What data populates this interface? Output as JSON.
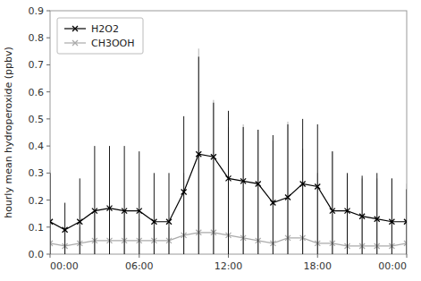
{
  "chart_data": {
    "type": "line",
    "y_label": "hourly mean hydroperoxide (ppbv)",
    "x": [
      0,
      1,
      2,
      3,
      4,
      5,
      6,
      7,
      8,
      9,
      10,
      11,
      12,
      13,
      14,
      15,
      16,
      17,
      18,
      19,
      20,
      21,
      22,
      23,
      24
    ],
    "xlim": [
      0,
      24
    ],
    "xticks": [
      {
        "value": 0,
        "label": "00:00"
      },
      {
        "value": 6,
        "label": "06:00"
      },
      {
        "value": 12,
        "label": "12:00"
      },
      {
        "value": 18,
        "label": "18:00"
      },
      {
        "value": 24,
        "label": "00:00"
      }
    ],
    "ylim": [
      0.0,
      0.9
    ],
    "yticks": [
      {
        "value": 0.0,
        "label": "0.0"
      },
      0.1,
      0.2,
      0.3,
      0.4,
      0.5,
      0.6,
      0.7,
      0.8,
      0.9
    ],
    "grid": false,
    "legend": "upper-left",
    "series": [
      {
        "name": "H2O2",
        "color": "#000000",
        "marker": "x",
        "line_style": "solid",
        "values": [
          0.12,
          0.09,
          0.12,
          0.16,
          0.17,
          0.16,
          0.16,
          0.12,
          0.12,
          0.23,
          0.37,
          0.36,
          0.28,
          0.27,
          0.26,
          0.19,
          0.21,
          0.26,
          0.25,
          0.16,
          0.16,
          0.14,
          0.13,
          0.12,
          0.12
        ],
        "upper": [
          0.3,
          0.19,
          0.28,
          0.4,
          0.4,
          0.4,
          0.38,
          0.3,
          0.3,
          0.51,
          0.73,
          0.56,
          0.53,
          0.47,
          0.46,
          0.44,
          0.48,
          0.5,
          0.48,
          0.38,
          0.3,
          0.29,
          0.3,
          0.28,
          0.24
        ],
        "lower": [
          0.0,
          0.0,
          0.0,
          0.0,
          0.0,
          0.0,
          0.0,
          0.0,
          0.0,
          0.0,
          0.0,
          0.0,
          0.0,
          0.0,
          0.0,
          0.0,
          0.0,
          0.0,
          0.0,
          0.0,
          0.0,
          0.0,
          0.0,
          0.0,
          0.0
        ]
      },
      {
        "name": "CH3OOH",
        "color": "#aaaaaa",
        "marker": "x",
        "line_style": "solid",
        "values": [
          0.04,
          0.03,
          0.04,
          0.05,
          0.05,
          0.05,
          0.05,
          0.05,
          0.05,
          0.07,
          0.08,
          0.08,
          0.07,
          0.06,
          0.05,
          0.04,
          0.06,
          0.06,
          0.04,
          0.04,
          0.03,
          0.03,
          0.03,
          0.03,
          0.04
        ],
        "upper": [
          0.31,
          0.1,
          0.1,
          0.16,
          0.16,
          0.16,
          0.13,
          0.1,
          0.1,
          0.3,
          0.76,
          0.57,
          0.47,
          0.48,
          0.46,
          0.42,
          0.49,
          0.39,
          0.3,
          0.38,
          0.29,
          0.28,
          0.28,
          0.28,
          0.26
        ],
        "lower": [
          0.0,
          0.0,
          0.0,
          0.0,
          0.0,
          0.0,
          0.0,
          0.0,
          0.0,
          0.0,
          0.0,
          0.0,
          0.0,
          0.0,
          0.0,
          0.0,
          0.0,
          0.0,
          0.0,
          0.0,
          0.0,
          0.0,
          0.0,
          0.0,
          0.0
        ]
      }
    ]
  }
}
